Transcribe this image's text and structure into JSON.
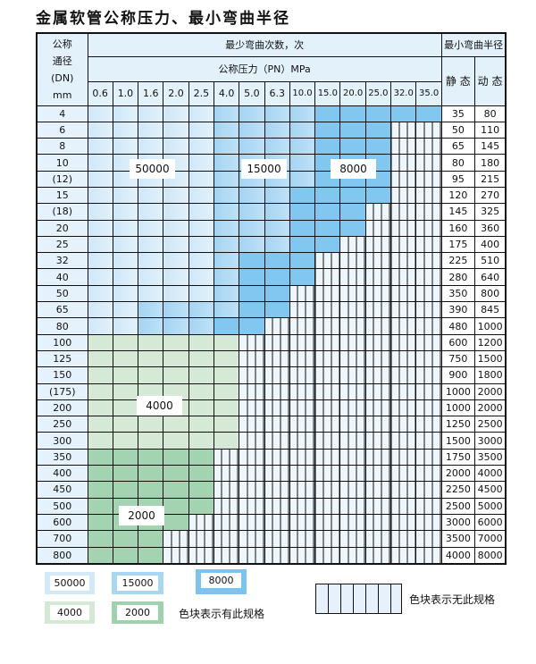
{
  "title": "金属软管公称压力、最小弯曲半径",
  "header": {
    "dn_label": [
      "公称",
      "通径",
      "(DN)",
      "mm"
    ],
    "bend_count": "最少弯曲次数，次",
    "pressure": "公称压力（PN）MPa",
    "min_radius": "最小弯曲半径",
    "static": "静 态",
    "dynamic": "动 态",
    "pn_values": [
      "0.6",
      "1.0",
      "1.6",
      "2.0",
      "2.5",
      "4.0",
      "5.0",
      "6.3",
      "10.0",
      "15.0",
      "20.0",
      "25.0",
      "32.0",
      "35.0"
    ]
  },
  "shade_colors": {
    "50000": "#cfe7f7",
    "15000": "#a4d4f2",
    "8000": "#82c7ef",
    "4000": "#d5e9d6",
    "2000": "#a3d3b0",
    "none": "hatched"
  },
  "rows": [
    {
      "dn": "4",
      "cells": "AAAAABBBBCCCCC",
      "static": "35",
      "dynamic": "80"
    },
    {
      "dn": "6",
      "cells": "AAAAABBBBCCCNN",
      "static": "50",
      "dynamic": "110"
    },
    {
      "dn": "8",
      "cells": "AAAAABBBBCCCNN",
      "static": "65",
      "dynamic": "145"
    },
    {
      "dn": "10",
      "cells": "AAAAABBBBCCCNN",
      "static": "80",
      "dynamic": "180"
    },
    {
      "dn": "(12)",
      "cells": "AAAAABBBBCCCNN",
      "static": "95",
      "dynamic": "215"
    },
    {
      "dn": "15",
      "cells": "AAAAABBBCCCCNN",
      "static": "120",
      "dynamic": "270"
    },
    {
      "dn": "(18)",
      "cells": "AAAAABBBCCCNNN",
      "static": "145",
      "dynamic": "325"
    },
    {
      "dn": "20",
      "cells": "AAAAABBBCCCNNN",
      "static": "160",
      "dynamic": "360"
    },
    {
      "dn": "25",
      "cells": "AAAAABBBCCNNNN",
      "static": "175",
      "dynamic": "400"
    },
    {
      "dn": "32",
      "cells": "AAAAABCCCNNNNN",
      "static": "225",
      "dynamic": "510"
    },
    {
      "dn": "40",
      "cells": "AAAAABCCCNNNNN",
      "static": "280",
      "dynamic": "640"
    },
    {
      "dn": "50",
      "cells": "AAAAABCCNNNNNN",
      "static": "350",
      "dynamic": "800"
    },
    {
      "dn": "65",
      "cells": "AABBBBCCNNNNNN",
      "static": "390",
      "dynamic": "845"
    },
    {
      "dn": "80",
      "cells": "AABBBCCNNNNNNN",
      "static": "480",
      "dynamic": "1000"
    },
    {
      "dn": "100",
      "cells": "DDDDDDNNNNNNNN",
      "static": "600",
      "dynamic": "1200"
    },
    {
      "dn": "125",
      "cells": "DDDDDDNNNNNNNN",
      "static": "750",
      "dynamic": "1500"
    },
    {
      "dn": "150",
      "cells": "DDDDDDNNNNNNNN",
      "static": "900",
      "dynamic": "1800"
    },
    {
      "dn": "(175)",
      "cells": "DDDDDDNNNNNNNN",
      "static": "1000",
      "dynamic": "2000"
    },
    {
      "dn": "200",
      "cells": "DDDDDDNNNNNNNN",
      "static": "1000",
      "dynamic": "2000"
    },
    {
      "dn": "250",
      "cells": "DDDDDDNNNNNNNN",
      "static": "1250",
      "dynamic": "2500"
    },
    {
      "dn": "300",
      "cells": "DDDDDDNNNNNNNN",
      "static": "1500",
      "dynamic": "3000"
    },
    {
      "dn": "350",
      "cells": "EEEEENNNNNNNNN",
      "static": "1750",
      "dynamic": "3500"
    },
    {
      "dn": "400",
      "cells": "EEEEENNNNNNNNN",
      "static": "2000",
      "dynamic": "4000"
    },
    {
      "dn": "450",
      "cells": "EEEEENNNNNNNNN",
      "static": "2250",
      "dynamic": "4500"
    },
    {
      "dn": "500",
      "cells": "EEEEENNNNNNNNN",
      "static": "2500",
      "dynamic": "5000"
    },
    {
      "dn": "600",
      "cells": "EEEENNNNNNNNNN",
      "static": "3000",
      "dynamic": "6000"
    },
    {
      "dn": "700",
      "cells": "EEENNNNNNNNNNN",
      "static": "3500",
      "dynamic": "7000"
    },
    {
      "dn": "800",
      "cells": "EEENNNNNNNNNNN",
      "static": "4000",
      "dynamic": "8000"
    }
  ],
  "region_labels": {
    "a": "50000",
    "b": "15000",
    "c": "8000",
    "d": "4000",
    "e": "2000"
  },
  "legend": {
    "items": [
      "50000",
      "15000",
      "8000",
      "4000",
      "2000"
    ],
    "has_spec": "色块表示有此规格",
    "no_spec": "色块表示无此规格"
  }
}
